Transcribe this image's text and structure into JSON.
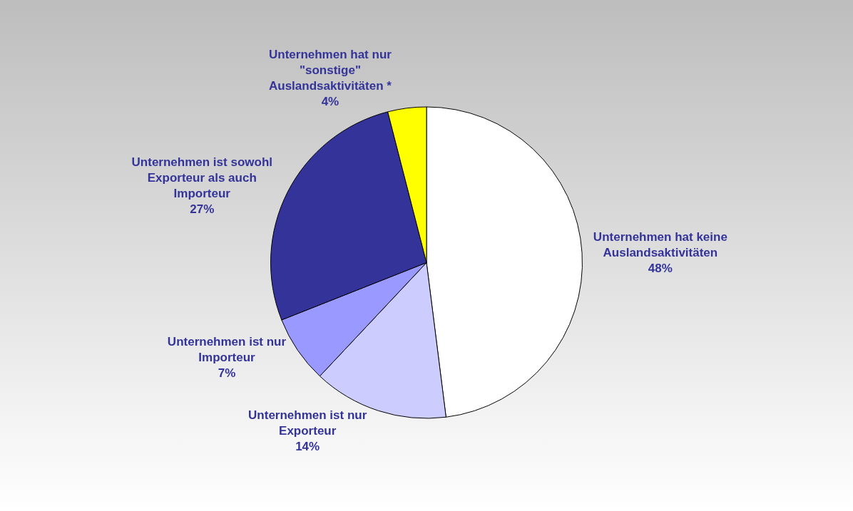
{
  "chart_data": {
    "type": "pie",
    "categories": [
      "Unternehmen hat keine Auslandsaktivitäten",
      "Unternehmen ist nur Exporteur",
      "Unternehmen ist nur Importeur",
      "Unternehmen ist sowohl Exporteur als auch Importeur",
      "Unternehmen hat nur \"sonstige\" Auslandsaktivitäten *"
    ],
    "values": [
      48,
      14,
      7,
      27,
      4
    ],
    "value_labels": [
      "48%",
      "14%",
      "7%",
      "27%",
      "4%"
    ],
    "colors": [
      "#ffffff",
      "#ccccff",
      "#9999ff",
      "#333399",
      "#ffff00"
    ],
    "legend": false
  }
}
